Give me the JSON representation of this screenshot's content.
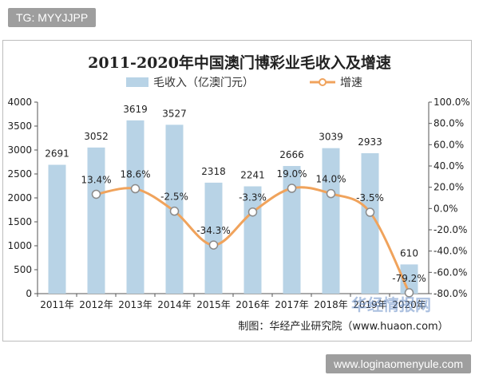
{
  "header_tag": "TG: MYYJJPP",
  "footer_url": "www.loginaomenyule.com",
  "source_note": "制图：华经产业研究院（www.huaon.com）",
  "watermark": "华经情报网",
  "colors": {
    "bar": "#b8d3e6",
    "line": "#f0a35c",
    "marker_fill": "#ffffff",
    "marker_stroke": "#8a8a8a"
  },
  "chart_data": {
    "type": "bar",
    "title": "2011-2020年中国澳门博彩业毛收入及增速",
    "categories": [
      "2011年",
      "2012年",
      "2013年",
      "2014年",
      "2015年",
      "2016年",
      "2017年",
      "2018年",
      "2019年",
      "2020年"
    ],
    "series": [
      {
        "name": "毛收入（亿澳门元）",
        "type": "bar",
        "axis": "left",
        "values": [
          2691,
          3052,
          3619,
          3527,
          2318,
          2241,
          2666,
          3039,
          2933,
          610
        ],
        "labels": [
          "2691",
          "3052",
          "3619",
          "3527",
          "2318",
          "2241",
          "2666",
          "3039",
          "2933",
          "610"
        ]
      },
      {
        "name": "增速",
        "type": "line",
        "axis": "right",
        "values": [
          null,
          13.4,
          18.6,
          -2.5,
          -34.3,
          -3.3,
          19.0,
          14.0,
          -3.5,
          -79.2
        ],
        "labels": [
          "",
          "13.4%",
          "18.6%",
          "-2.5%",
          "-34.3%",
          "-3.3%",
          "19.0%",
          "14.0%",
          "-3.5%",
          "-79.2%"
        ]
      }
    ],
    "ylim_left": [
      0,
      4000
    ],
    "yticks_left": [
      "0",
      "500",
      "1000",
      "1500",
      "2000",
      "2500",
      "3000",
      "3500",
      "4000"
    ],
    "ylim_right": [
      -80,
      100
    ],
    "yticks_right": [
      "-80.0%",
      "-60.0%",
      "-40.0%",
      "-20.0%",
      "0.0%",
      "20.0%",
      "40.0%",
      "60.0%",
      "80.0%",
      "100.0%"
    ],
    "legend_position": "top",
    "grid": false
  }
}
